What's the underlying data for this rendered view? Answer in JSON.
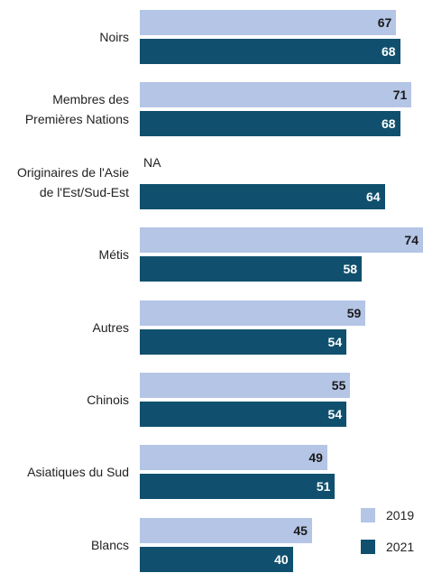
{
  "chart_data": {
    "type": "bar",
    "orientation": "horizontal",
    "categories": [
      "Noirs",
      "Membres des\nPremières Nations",
      "Originaires de l'Asie\nde l'Est/Sud-Est",
      "Métis",
      "Autres",
      "Chinois",
      "Asiatiques du Sud",
      "Blancs"
    ],
    "series": [
      {
        "name": "2019",
        "color": "#b4c5e6",
        "values": [
          67,
          71,
          null,
          74,
          59,
          55,
          49,
          45
        ],
        "value_labels": [
          "67",
          "71",
          "NA",
          "74",
          "59",
          "55",
          "49",
          "45"
        ]
      },
      {
        "name": "2021",
        "color": "#10506e",
        "values": [
          68,
          68,
          64,
          58,
          54,
          54,
          51,
          40
        ]
      }
    ],
    "legend": "bottom-right"
  }
}
